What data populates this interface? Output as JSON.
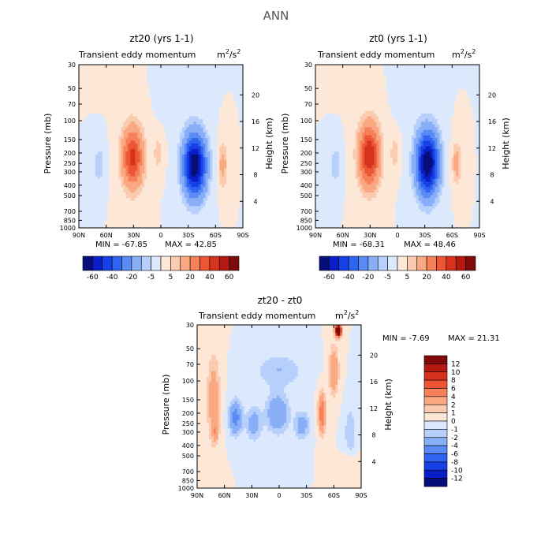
{
  "figure": {
    "title": "ANN",
    "unit_main": "m",
    "unit_sup": "2",
    "unit_tail": "/s",
    "unit_sup2": "2"
  },
  "chart_data": [
    {
      "id": "p1",
      "type": "heatmap",
      "title": "zt20 (yrs 1-1)",
      "subtitle": "Transient eddy momentum",
      "ylabel": "Pressure (mb)",
      "ylabel_right": "Height (km)",
      "x_ticks": [
        "90N",
        "60N",
        "30N",
        "0",
        "30S",
        "60S",
        "90S"
      ],
      "x_values": [
        90,
        60,
        30,
        0,
        -30,
        -60,
        -90
      ],
      "y_ticks": [
        "30",
        "50",
        "70",
        "100",
        "150",
        "200",
        "250",
        "300",
        "400",
        "500",
        "700",
        "850",
        "1000"
      ],
      "y_values": [
        30,
        50,
        70,
        100,
        150,
        200,
        250,
        300,
        400,
        500,
        700,
        850,
        1000
      ],
      "height_ticks": [
        "4",
        "8",
        "12",
        "16",
        "20"
      ],
      "height_values": [
        4,
        8,
        12,
        16,
        20
      ],
      "min_label": "MIN = -67.85",
      "max_label": "MAX =  42.85",
      "min": -67.85,
      "max": 42.85,
      "features": [
        {
          "lat": 31,
          "p": 220,
          "amp": 44,
          "w": 11,
          "h": 0.62
        },
        {
          "lat": -37,
          "p": 260,
          "amp": -70,
          "w": 12,
          "h": 0.65
        },
        {
          "lat": -68,
          "p": 260,
          "amp": 14,
          "w": 5,
          "h": 0.45
        },
        {
          "lat": 3,
          "p": 200,
          "amp": 8,
          "w": 5,
          "h": 0.35
        },
        {
          "lat": 68,
          "p": 260,
          "amp": -9,
          "w": 6,
          "h": 0.4
        },
        {
          "lat": 55,
          "p": 40,
          "amp": 5,
          "w": 14,
          "h": 0.3
        },
        {
          "lat": -15,
          "p": 60,
          "amp": -4,
          "w": 12,
          "h": 0.5
        }
      ]
    },
    {
      "id": "p2",
      "type": "heatmap",
      "title": "zt0 (yrs 1-1)",
      "subtitle": "Transient eddy momentum",
      "ylabel": "Pressure (mb)",
      "ylabel_right": "Height (km)",
      "x_ticks": [
        "90N",
        "60N",
        "30N",
        "0",
        "30S",
        "60S",
        "90S"
      ],
      "x_values": [
        90,
        60,
        30,
        0,
        -30,
        -60,
        -90
      ],
      "y_ticks": [
        "30",
        "50",
        "70",
        "100",
        "150",
        "200",
        "250",
        "300",
        "400",
        "500",
        "700",
        "850",
        "1000"
      ],
      "y_values": [
        30,
        50,
        70,
        100,
        150,
        200,
        250,
        300,
        400,
        500,
        700,
        850,
        1000
      ],
      "height_ticks": [
        "4",
        "8",
        "12",
        "16",
        "20"
      ],
      "height_values": [
        4,
        8,
        12,
        16,
        20
      ],
      "min_label": "MIN = -68.31",
      "max_label": "MAX =  48.46",
      "min": -68.31,
      "max": 48.46,
      "features": [
        {
          "lat": 31,
          "p": 210,
          "amp": 50,
          "w": 11,
          "h": 0.64
        },
        {
          "lat": -33,
          "p": 250,
          "amp": -70,
          "w": 12,
          "h": 0.66
        },
        {
          "lat": -65,
          "p": 250,
          "amp": 14,
          "w": 5,
          "h": 0.45
        },
        {
          "lat": 3,
          "p": 200,
          "amp": 8,
          "w": 5,
          "h": 0.35
        },
        {
          "lat": 68,
          "p": 260,
          "amp": -9,
          "w": 6,
          "h": 0.4
        },
        {
          "lat": 55,
          "p": 40,
          "amp": 5,
          "w": 14,
          "h": 0.3
        },
        {
          "lat": -15,
          "p": 60,
          "amp": -4,
          "w": 12,
          "h": 0.5
        }
      ]
    },
    {
      "id": "p3",
      "type": "heatmap",
      "title": "zt20 - zt0",
      "subtitle": "Transient eddy momentum",
      "ylabel": "Pressure (mb)",
      "ylabel_right": "Height (km)",
      "x_ticks": [
        "90N",
        "60N",
        "30N",
        "0",
        "30S",
        "60S",
        "90S"
      ],
      "x_values": [
        90,
        60,
        30,
        0,
        -30,
        -60,
        -90
      ],
      "y_ticks": [
        "30",
        "50",
        "70",
        "100",
        "150",
        "200",
        "250",
        "300",
        "400",
        "500",
        "700",
        "850",
        "1000"
      ],
      "y_values": [
        30,
        50,
        70,
        100,
        150,
        200,
        250,
        300,
        400,
        500,
        700,
        850,
        1000
      ],
      "height_ticks": [
        "4",
        "8",
        "12",
        "16",
        "20"
      ],
      "height_values": [
        4,
        8,
        12,
        16,
        20
      ],
      "min_label": "MIN =  -7.69",
      "max_label": "MAX =  21.31",
      "min": -7.69,
      "max": 21.31,
      "features": [
        {
          "lat": 72,
          "p": 150,
          "amp": 3.2,
          "w": 7,
          "h": 0.9
        },
        {
          "lat": 70,
          "p": 300,
          "amp": 2.5,
          "w": 3,
          "h": 0.2
        },
        {
          "lat": 48,
          "p": 220,
          "amp": -5,
          "w": 7,
          "h": 0.35
        },
        {
          "lat": 28,
          "p": 250,
          "amp": -3,
          "w": 8,
          "h": 0.35
        },
        {
          "lat": 2,
          "p": 200,
          "amp": -4,
          "w": 12,
          "h": 0.4
        },
        {
          "lat": 0,
          "p": 80,
          "amp": -2,
          "w": 25,
          "h": 0.35
        },
        {
          "lat": -25,
          "p": 260,
          "amp": -3,
          "w": 8,
          "h": 0.3
        },
        {
          "lat": -47,
          "p": 200,
          "amp": 6,
          "w": 4,
          "h": 0.4
        },
        {
          "lat": -60,
          "p": 80,
          "amp": 4,
          "w": 5,
          "h": 0.5
        },
        {
          "lat": -65,
          "p": 34,
          "amp": 21,
          "w": 3,
          "h": 0.12
        },
        {
          "lat": -78,
          "p": 300,
          "amp": -2,
          "w": 6,
          "h": 0.5
        },
        {
          "lat": -78,
          "p": 600,
          "amp": 1,
          "w": 8,
          "h": 0.25
        }
      ]
    }
  ],
  "colorbars": {
    "full": {
      "labels": [
        "-60",
        "-40",
        "-20",
        "-5",
        "5",
        "20",
        "40",
        "60"
      ],
      "levels": [
        -70,
        -60,
        -50,
        -40,
        -30,
        -20,
        -10,
        -5,
        0,
        5,
        10,
        20,
        30,
        40,
        50,
        60,
        70
      ],
      "colors": [
        "#080e78",
        "#0a1ec8",
        "#1640e6",
        "#2e64f0",
        "#5a8af4",
        "#88aef7",
        "#b6cffb",
        "#dce9fd",
        "#fde8d8",
        "#fbcbb0",
        "#f9a882",
        "#f5805a",
        "#ec5632",
        "#d7321e",
        "#b41912",
        "#7e0a0a"
      ]
    },
    "diff": {
      "labels": [
        "12",
        "10",
        "8",
        "6",
        "4",
        "2",
        "1",
        "0",
        "-1",
        "-2",
        "-4",
        "-6",
        "-8",
        "-10",
        "-12"
      ],
      "levels": [
        -14,
        -12,
        -10,
        -8,
        -6,
        -4,
        -2,
        -1,
        0,
        1,
        2,
        4,
        6,
        8,
        10,
        12,
        14
      ],
      "colors": [
        "#080e78",
        "#0a1ec8",
        "#1640e6",
        "#2e64f0",
        "#5a8af4",
        "#88aef7",
        "#b6cffb",
        "#dce9fd",
        "#fde8d8",
        "#fbcbb0",
        "#f9a882",
        "#f5805a",
        "#ec5632",
        "#d7321e",
        "#b41912",
        "#7e0a0a"
      ]
    }
  }
}
